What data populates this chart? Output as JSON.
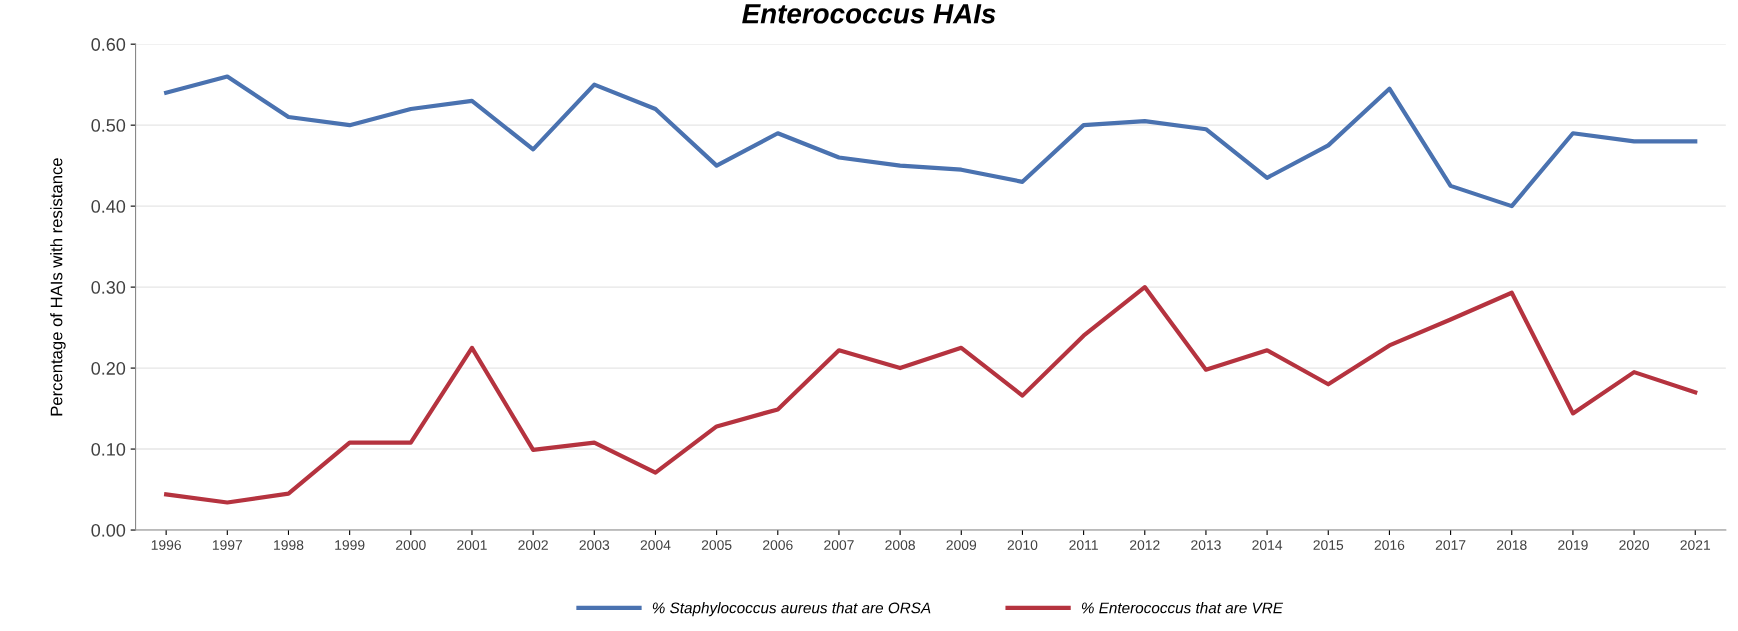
{
  "chart_data": {
    "type": "line",
    "title": "Enterococcus HAIs",
    "ylabel": "Percentage of HAIs with resistance",
    "categories": [
      "1996",
      "1997",
      "1998",
      "1999",
      "2000",
      "2001",
      "2002",
      "2003",
      "2004",
      "2005",
      "2006",
      "2007",
      "2008",
      "2009",
      "2010",
      "2011",
      "2012",
      "2013",
      "2014",
      "2015",
      "2016",
      "2017",
      "2018",
      "2019",
      "2020",
      "2021"
    ],
    "series": [
      {
        "name": "% Staphylococcus aureus that are ORSA",
        "color": "#4a72b0",
        "values": [
          0.54,
          0.56,
          0.51,
          0.5,
          0.52,
          0.53,
          0.47,
          0.55,
          0.52,
          0.45,
          0.49,
          0.46,
          0.45,
          0.445,
          0.43,
          0.5,
          0.505,
          0.495,
          0.435,
          0.475,
          0.545,
          0.425,
          0.4,
          0.49,
          0.48,
          0.48
        ]
      },
      {
        "name": "% Enterococcus that are VRE",
        "color": "#b5333f",
        "values": [
          0.044,
          0.034,
          0.045,
          0.108,
          0.108,
          0.225,
          0.099,
          0.108,
          0.071,
          0.128,
          0.149,
          0.222,
          0.2,
          0.225,
          0.166,
          0.24,
          0.3,
          0.198,
          0.222,
          0.18,
          0.228,
          0.26,
          0.293,
          0.144,
          0.195,
          0.17
        ]
      }
    ],
    "ylim": [
      0,
      0.6
    ],
    "yticks": [
      {
        "value": 0,
        "label": "0.00"
      },
      {
        "value": 0.1,
        "label": "0.10"
      },
      {
        "value": 0.2,
        "label": "0.20"
      },
      {
        "value": 0.3,
        "label": "0.30"
      },
      {
        "value": 0.4,
        "label": "0.40"
      },
      {
        "value": 0.5,
        "label": "0.50"
      },
      {
        "value": 0.6,
        "label": "0.60"
      }
    ],
    "grid": "y",
    "legend": "bottom",
    "marker": "none",
    "line_style": "solid"
  }
}
